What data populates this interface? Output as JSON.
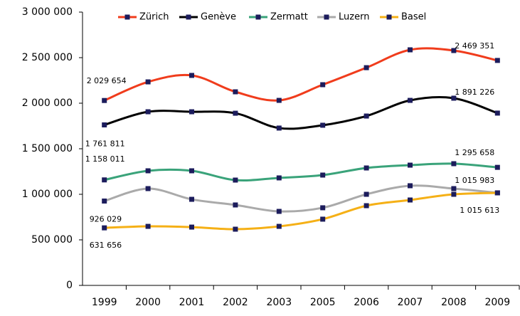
{
  "chart_data": {
    "type": "line",
    "categories": [
      "1999",
      "2000",
      "2001",
      "2002",
      "2003",
      "2005",
      "2006",
      "2007",
      "2008",
      "2009"
    ],
    "series": [
      {
        "name": "Zürich",
        "color": "#f03c1c",
        "values": [
          2029654,
          2234000,
          2305000,
          2125000,
          2031000,
          2203000,
          2390000,
          2586000,
          2578000,
          2469351
        ],
        "value_labels": [
          "2 029 654",
          null,
          null,
          null,
          null,
          null,
          null,
          null,
          null,
          "2 469 351"
        ]
      },
      {
        "name": "Genève",
        "color": "#000000",
        "values": [
          1761811,
          1906000,
          1906000,
          1890000,
          1727000,
          1758000,
          1859000,
          2031000,
          2055000,
          1891226
        ],
        "value_labels": [
          "1 761 811",
          null,
          null,
          null,
          null,
          null,
          null,
          null,
          null,
          "1 891 226"
        ]
      },
      {
        "name": "Zermatt",
        "color": "#3aa37a",
        "values": [
          1158011,
          1258000,
          1258000,
          1156000,
          1180000,
          1211000,
          1289000,
          1320000,
          1336000,
          1295658
        ],
        "value_labels": [
          "1 158 011",
          null,
          null,
          null,
          null,
          null,
          null,
          null,
          null,
          "1 295 658"
        ]
      },
      {
        "name": "Luzern",
        "color": "#aaaaaa",
        "values": [
          926029,
          1062500,
          945000,
          883000,
          812500,
          852000,
          1000000,
          1094000,
          1062500,
          1015983
        ],
        "value_labels": [
          "926 029",
          null,
          null,
          null,
          null,
          null,
          null,
          null,
          null,
          "1 015 983"
        ]
      },
      {
        "name": "Basel",
        "color": "#f5b016",
        "values": [
          631656,
          648000,
          640000,
          617000,
          648000,
          727000,
          875000,
          937500,
          1000000,
          1015613
        ],
        "value_labels": [
          "631 656",
          null,
          null,
          null,
          null,
          null,
          null,
          null,
          null,
          "1 015 613"
        ]
      }
    ],
    "marker_color": "#1c1c5c",
    "ylim": [
      0,
      3000000
    ],
    "yticks": [
      0,
      {
        "value": 500000,
        "label": "500 000"
      },
      {
        "value": 1000000,
        "label": "1 000 000"
      },
      {
        "value": 1500000,
        "label": "1 500 000"
      },
      {
        "value": 2000000,
        "label": "2 000 000"
      },
      {
        "value": 2500000,
        "label": "2 500 000"
      },
      {
        "value": 3000000,
        "label": "3 000 000"
      }
    ],
    "grid": false,
    "legend": "top"
  }
}
